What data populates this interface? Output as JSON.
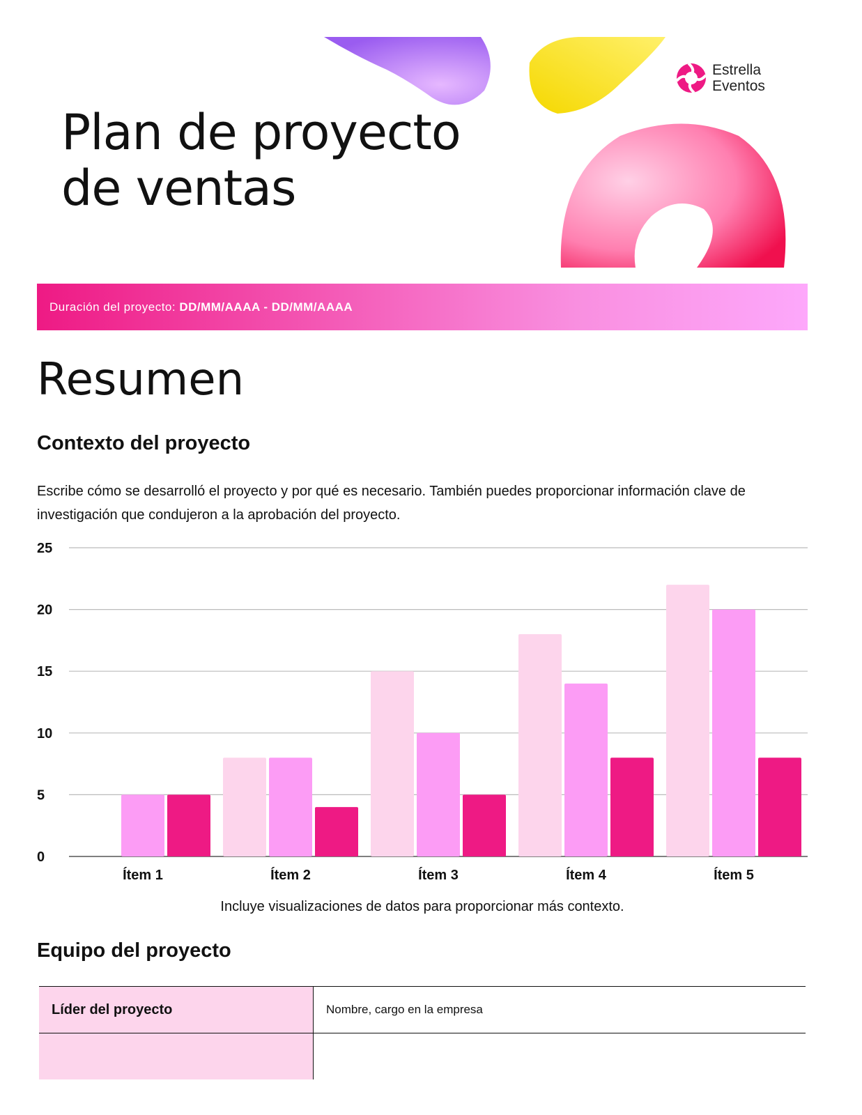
{
  "header": {
    "title_line1": "Plan de proyecto",
    "title_line2": "de ventas",
    "logo_line1": "Estrella",
    "logo_line2": "Eventos"
  },
  "banner": {
    "label": "Duración del proyecto:",
    "dates": "DD/MM/AAAA - DD/MM/AAAA"
  },
  "summary": {
    "heading": "Resumen",
    "context_heading": "Contexto del proyecto",
    "context_text": "Escribe cómo se desarrolló el proyecto y por qué es necesario. También puedes proporcionar información clave de investigación que condujeron a la aprobación del proyecto.",
    "caption": "Incluye visualizaciones de datos para proporcionar más contexto.",
    "team_heading": "Equipo del proyecto"
  },
  "table": {
    "rows": [
      [
        "Líder del proyecto",
        "Nombre, cargo en la empresa"
      ]
    ]
  },
  "chart_data": {
    "type": "bar",
    "categories": [
      "Ítem 1",
      "Ítem 2",
      "Ítem 3",
      "Ítem 4",
      "Ítem 5"
    ],
    "series": [
      {
        "color": "#fdd5ec",
        "values": [
          0,
          8,
          15,
          18,
          22
        ]
      },
      {
        "color": "#fc9cf5",
        "values": [
          5,
          8,
          10,
          14,
          20
        ]
      },
      {
        "color": "#ee1a84",
        "values": [
          5,
          4,
          5,
          8,
          8
        ]
      }
    ],
    "ylim": [
      0,
      25
    ],
    "yticks": [
      0,
      5,
      10,
      15,
      20,
      25
    ],
    "grid": true
  }
}
